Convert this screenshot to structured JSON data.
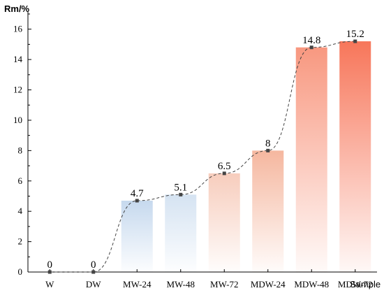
{
  "chart_data": {
    "type": "bar",
    "categories": [
      "W",
      "DW",
      "MW-24",
      "MW-48",
      "MW-72",
      "MDW-24",
      "MDW-48",
      "MDW-72"
    ],
    "values": [
      0,
      0,
      4.7,
      5.1,
      6.5,
      8,
      14.8,
      15.2
    ],
    "data_labels": [
      "0",
      "0",
      "4.7",
      "5.1",
      "6.5",
      "8",
      "14.8",
      "15.2"
    ],
    "xlabel": "Sample",
    "ylabel": "Rm/%",
    "ylim": [
      0,
      17
    ],
    "yticks": [
      0,
      2,
      4,
      6,
      8,
      10,
      12,
      14,
      16
    ],
    "grid": false,
    "overlay_line": {
      "style": "dashed",
      "marker": "square",
      "color": "#444444"
    },
    "bar_colors": [
      "#ffffff",
      "#ffffff",
      "#c6d9ee",
      "#d5e3f2",
      "#f7cdbd",
      "#f5b79f",
      "#f89880",
      "#f7765a"
    ]
  }
}
